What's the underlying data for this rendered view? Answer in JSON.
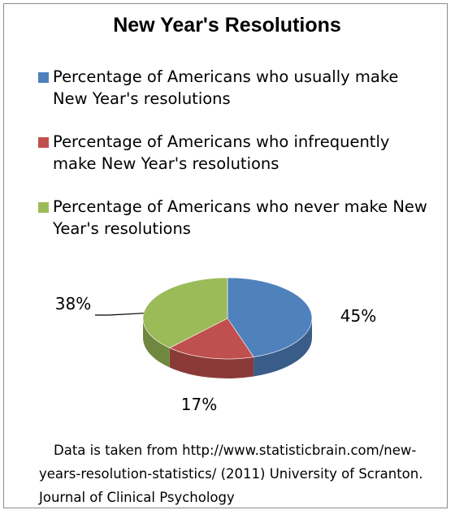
{
  "chart_data": {
    "type": "pie",
    "title": "New Year's Resolutions",
    "series": [
      {
        "name": "Percentage of Americans who usually make New Year's resolutions",
        "value": 45,
        "label": "45%",
        "color": "#4f81bd"
      },
      {
        "name": "Percentage of Americans who infrequently make New Year's resolutions",
        "value": 17,
        "label": "17%",
        "color": "#c0504d"
      },
      {
        "name": "Percentage of Americans who never make New Year's resolutions",
        "value": 38,
        "label": "38%",
        "color": "#9bbb59"
      }
    ],
    "legend_position": "top"
  },
  "source_note": "Data is taken from http://www.statisticbrain.com/new-years-resolution-statistics/ (2011) University of Scranton. Journal of Clinical Psychology"
}
